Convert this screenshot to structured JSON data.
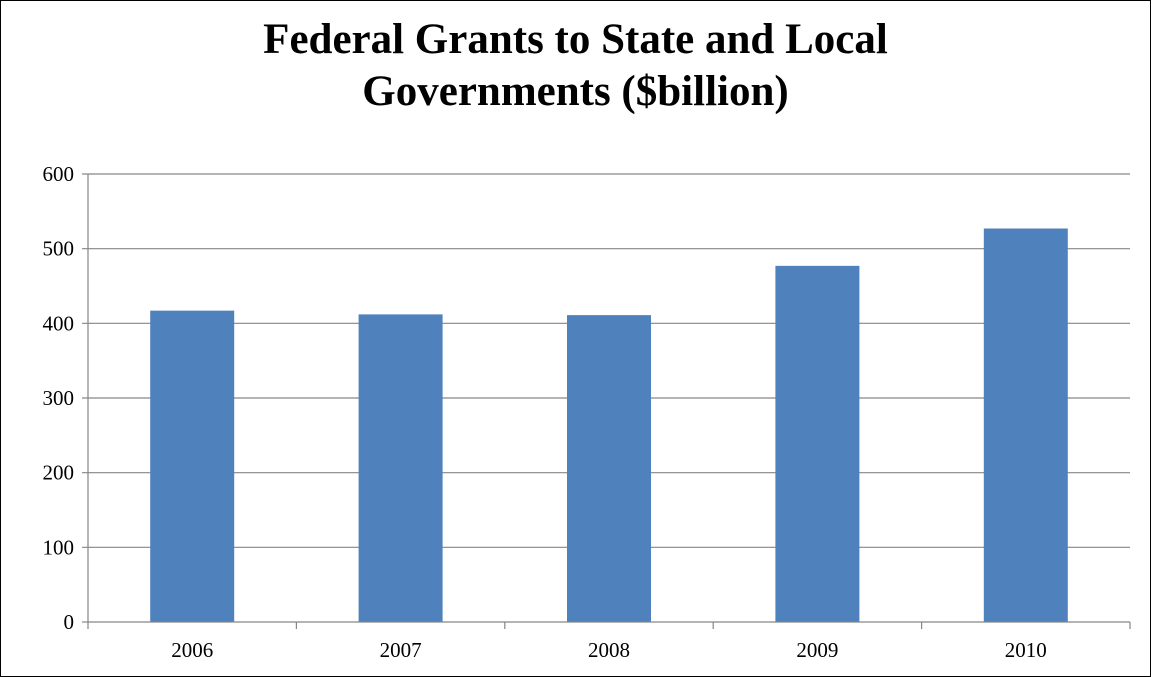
{
  "chart_data": {
    "type": "bar",
    "title_lines": [
      "Federal Grants to State and Local",
      "Governments ($billion)"
    ],
    "categories": [
      "2006",
      "2007",
      "2008",
      "2009",
      "2010"
    ],
    "values": [
      417,
      412,
      411,
      477,
      527
    ],
    "ylim": [
      0,
      600
    ],
    "yticks": [
      0,
      100,
      200,
      300,
      400,
      500,
      600
    ],
    "grid": true,
    "legend": "none",
    "bar_color": "#4F81BD",
    "grid_color": "#868686",
    "axis_color": "#868686"
  }
}
